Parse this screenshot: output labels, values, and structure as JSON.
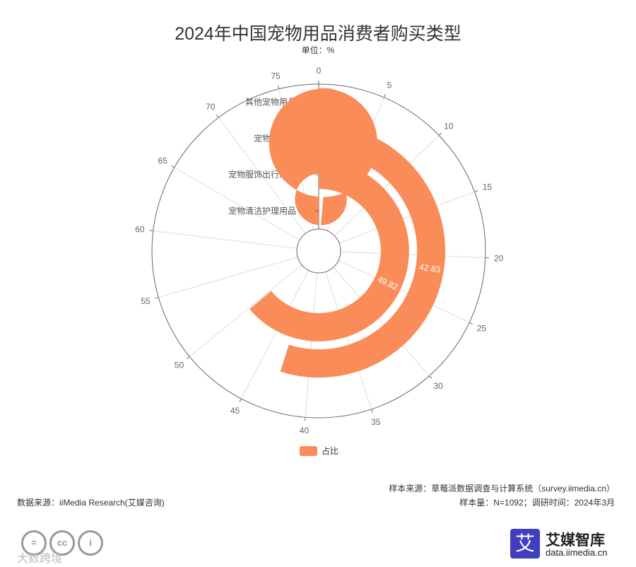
{
  "header": {
    "title": "2024年中国宠物用品消费者购买类型",
    "unit": "单位：%"
  },
  "chart_data": {
    "type": "polar-bar",
    "categories": [
      "其他宠物用品",
      "宠物日用品",
      "宠物服饰出行用品",
      "宠物清洁护理用品"
    ],
    "series": [
      {
        "name": "占比",
        "values": [
          1.1,
          42.83,
          49.82,
          79.04
        ]
      }
    ],
    "value_labels": [
      "1.10",
      "42.83",
      "49.82",
      "79.04"
    ],
    "angle_axis": {
      "max": 78,
      "ticks": [
        0,
        5,
        10,
        15,
        20,
        25,
        30,
        35,
        40,
        45,
        50,
        55,
        60,
        65,
        70,
        75
      ]
    },
    "legend": {
      "position": "bottom",
      "label": "占比"
    },
    "colors": {
      "bar": "#f98c58",
      "grid": "#dddddd",
      "axis": "#666666"
    }
  },
  "footer": {
    "source_left": "数据来源：iiMedia Research(艾媒咨询)",
    "sample_source": "样本来源：草莓派数据调查与计算系统（survey.iimedia.cn）",
    "sample_size": "样本量：N=1092；调研时间：2024年3月",
    "brand_icon": "艾",
    "brand_name": "艾媒智库",
    "brand_url": "data.iimedia.cn",
    "watermark": "大数跨境",
    "cc_icons": [
      "=",
      "cc",
      "i"
    ]
  }
}
